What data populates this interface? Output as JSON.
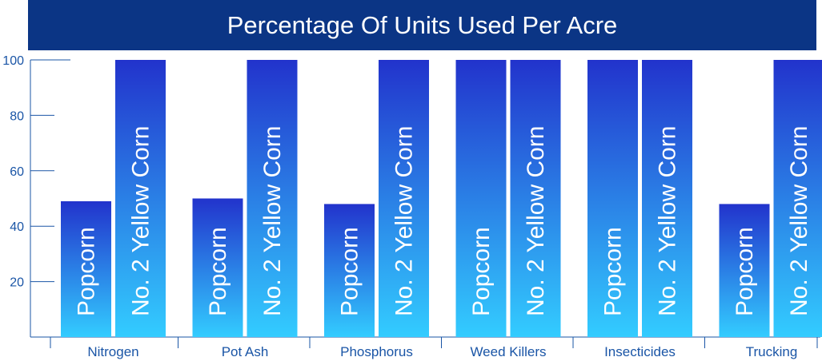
{
  "chart_data": {
    "type": "bar",
    "title": "Percentage Of Units Used Per Acre",
    "categories": [
      "Nitrogen",
      "Pot Ash",
      "Phosphorus",
      "Weed Killers",
      "Insecticides",
      "Trucking"
    ],
    "series": [
      {
        "name": "Popcorn",
        "values": [
          49,
          50,
          48,
          100,
          100,
          48
        ]
      },
      {
        "name": "No. 2 Yellow Corn",
        "values": [
          100,
          100,
          100,
          100,
          100,
          100
        ]
      }
    ],
    "y_ticks": [
      "20",
      "40",
      "60",
      "80",
      "100"
    ],
    "ylim": [
      0,
      100
    ],
    "grid": false,
    "legend": "none"
  },
  "colors": {
    "title_bg": "#0b3585",
    "bar_top": "#2233cc",
    "bar_bottom": "#33ccff",
    "axis": "#1a55a6",
    "text": "#1a55a6"
  }
}
